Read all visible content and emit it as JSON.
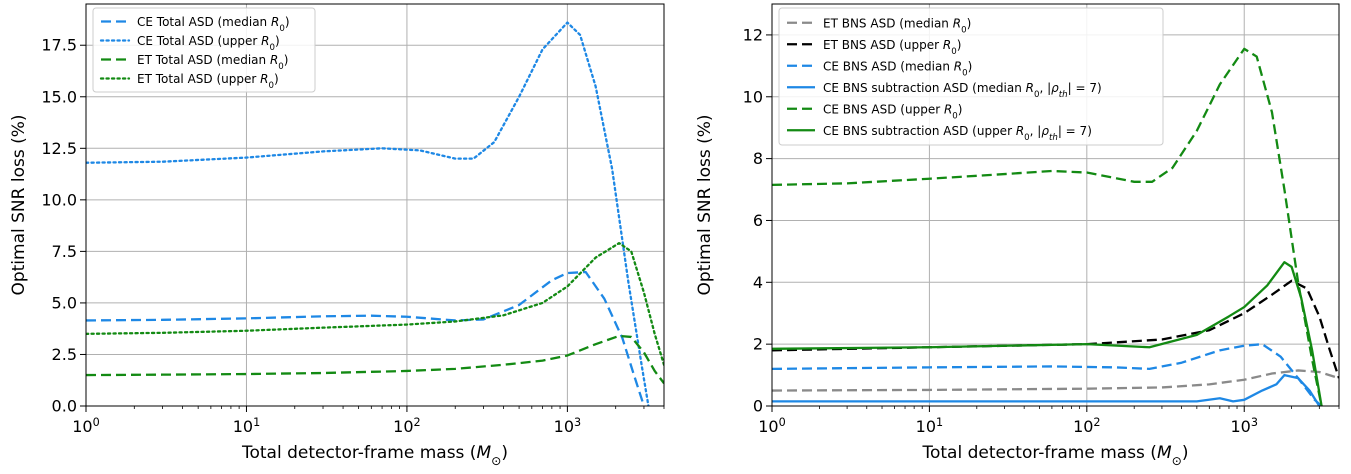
{
  "chart_data": [
    {
      "type": "line",
      "xlabel": "Total detector-frame mass (M⊙)",
      "ylabel": "Optimal SNR loss (%)",
      "xscale": "log",
      "xlim": [
        1,
        4000
      ],
      "ylim": [
        0,
        19.5
      ],
      "yticks": [
        "0.0",
        "2.5",
        "5.0",
        "7.5",
        "10.0",
        "12.5",
        "15.0",
        "17.5"
      ],
      "xticks": [
        "10^0",
        "10^1",
        "10^2",
        "10^3"
      ],
      "grid": true,
      "legend_position": "top-left",
      "series": [
        {
          "name": "CE Total ASD (median R0)",
          "color": "#1e88e5",
          "dash": "dashed",
          "points": [
            [
              1,
              4.15
            ],
            [
              3,
              4.18
            ],
            [
              10,
              4.25
            ],
            [
              30,
              4.35
            ],
            [
              60,
              4.38
            ],
            [
              100,
              4.33
            ],
            [
              200,
              4.15
            ],
            [
              300,
              4.2
            ],
            [
              500,
              4.9
            ],
            [
              800,
              6.1
            ],
            [
              1000,
              6.45
            ],
            [
              1300,
              6.5
            ],
            [
              1700,
              5.2
            ],
            [
              2200,
              3.3
            ],
            [
              2600,
              1.5
            ],
            [
              3000,
              0.0
            ]
          ]
        },
        {
          "name": "CE Total ASD (upper R0)",
          "color": "#1e88e5",
          "dash": "dotted",
          "points": [
            [
              1,
              11.8
            ],
            [
              3,
              11.85
            ],
            [
              10,
              12.05
            ],
            [
              30,
              12.35
            ],
            [
              70,
              12.5
            ],
            [
              120,
              12.4
            ],
            [
              200,
              12.0
            ],
            [
              260,
              12.0
            ],
            [
              350,
              12.8
            ],
            [
              500,
              15.0
            ],
            [
              700,
              17.3
            ],
            [
              1000,
              18.6
            ],
            [
              1200,
              18.0
            ],
            [
              1500,
              15.5
            ],
            [
              1900,
              11.5
            ],
            [
              2400,
              6.0
            ],
            [
              2900,
              2.0
            ],
            [
              3200,
              0.0
            ]
          ]
        },
        {
          "name": "ET Total ASD (median R0)",
          "color": "#138a13",
          "dash": "dashed",
          "points": [
            [
              1,
              1.5
            ],
            [
              3,
              1.52
            ],
            [
              10,
              1.55
            ],
            [
              30,
              1.6
            ],
            [
              100,
              1.7
            ],
            [
              200,
              1.8
            ],
            [
              400,
              2.0
            ],
            [
              700,
              2.2
            ],
            [
              1000,
              2.45
            ],
            [
              1500,
              3.0
            ],
            [
              2100,
              3.4
            ],
            [
              2500,
              3.35
            ],
            [
              3000,
              2.6
            ],
            [
              3500,
              1.7
            ],
            [
              4000,
              1.1
            ]
          ]
        },
        {
          "name": "ET Total ASD (upper R0)",
          "color": "#138a13",
          "dash": "dotted",
          "points": [
            [
              1,
              3.5
            ],
            [
              3,
              3.55
            ],
            [
              10,
              3.65
            ],
            [
              30,
              3.8
            ],
            [
              100,
              3.95
            ],
            [
              200,
              4.1
            ],
            [
              400,
              4.4
            ],
            [
              700,
              5.0
            ],
            [
              1000,
              5.8
            ],
            [
              1500,
              7.2
            ],
            [
              2100,
              7.9
            ],
            [
              2500,
              7.5
            ],
            [
              3000,
              5.5
            ],
            [
              3500,
              3.5
            ],
            [
              4000,
              2.0
            ]
          ]
        }
      ]
    },
    {
      "type": "line",
      "xlabel": "Total detector-frame mass (M⊙)",
      "ylabel": "Optimal SNR loss (%)",
      "xscale": "log",
      "xlim": [
        1,
        4000
      ],
      "ylim": [
        0,
        13
      ],
      "yticks": [
        "0",
        "2",
        "4",
        "6",
        "8",
        "10",
        "12"
      ],
      "xticks": [
        "10^0",
        "10^1",
        "10^2",
        "10^3"
      ],
      "grid": true,
      "legend_position": "top-left",
      "series": [
        {
          "name": "ET BNS ASD (median R0)",
          "color": "#8a8a8a",
          "dash": "dashed",
          "points": [
            [
              1,
              0.5
            ],
            [
              10,
              0.52
            ],
            [
              100,
              0.56
            ],
            [
              300,
              0.6
            ],
            [
              600,
              0.7
            ],
            [
              1000,
              0.85
            ],
            [
              1500,
              1.05
            ],
            [
              2200,
              1.15
            ],
            [
              3000,
              1.1
            ],
            [
              4000,
              0.9
            ]
          ]
        },
        {
          "name": "ET BNS ASD (upper R0)",
          "color": "#000000",
          "dash": "dashed",
          "points": [
            [
              1,
              1.8
            ],
            [
              10,
              1.9
            ],
            [
              100,
              2.0
            ],
            [
              300,
              2.15
            ],
            [
              600,
              2.45
            ],
            [
              1000,
              3.0
            ],
            [
              1500,
              3.6
            ],
            [
              2000,
              4.05
            ],
            [
              2500,
              3.8
            ],
            [
              3000,
              2.9
            ],
            [
              3500,
              1.8
            ],
            [
              4000,
              0.9
            ]
          ]
        },
        {
          "name": "CE BNS ASD (median R0)",
          "color": "#1e88e5",
          "dash": "dashed",
          "points": [
            [
              1,
              1.2
            ],
            [
              10,
              1.25
            ],
            [
              60,
              1.28
            ],
            [
              150,
              1.25
            ],
            [
              250,
              1.2
            ],
            [
              400,
              1.4
            ],
            [
              700,
              1.8
            ],
            [
              1000,
              1.95
            ],
            [
              1300,
              2.0
            ],
            [
              1700,
              1.6
            ],
            [
              2200,
              0.9
            ],
            [
              2800,
              0.2
            ],
            [
              3100,
              0.0
            ]
          ]
        },
        {
          "name": "CE BNS subtraction ASD (median R0, |ρth| = 7)",
          "color": "#1e88e5",
          "dash": "solid",
          "points": [
            [
              1,
              0.15
            ],
            [
              10,
              0.15
            ],
            [
              100,
              0.15
            ],
            [
              500,
              0.15
            ],
            [
              700,
              0.25
            ],
            [
              850,
              0.15
            ],
            [
              1000,
              0.2
            ],
            [
              1300,
              0.5
            ],
            [
              1600,
              0.7
            ],
            [
              1800,
              1.0
            ],
            [
              2200,
              0.9
            ],
            [
              2600,
              0.5
            ],
            [
              3000,
              0.0
            ]
          ]
        },
        {
          "name": "CE BNS ASD (upper R0)",
          "color": "#138a13",
          "dash": "dashed",
          "points": [
            [
              1,
              7.15
            ],
            [
              3,
              7.2
            ],
            [
              10,
              7.35
            ],
            [
              30,
              7.5
            ],
            [
              60,
              7.6
            ],
            [
              100,
              7.55
            ],
            [
              200,
              7.25
            ],
            [
              260,
              7.25
            ],
            [
              350,
              7.7
            ],
            [
              500,
              8.9
            ],
            [
              700,
              10.4
            ],
            [
              1000,
              11.55
            ],
            [
              1200,
              11.3
            ],
            [
              1500,
              9.5
            ],
            [
              1800,
              7.0
            ],
            [
              2200,
              4.0
            ],
            [
              2700,
              1.5
            ],
            [
              3100,
              0.0
            ]
          ]
        },
        {
          "name": "CE BNS subtraction ASD (upper R0, |ρth| = 7)",
          "color": "#138a13",
          "dash": "solid",
          "points": [
            [
              1,
              1.85
            ],
            [
              10,
              1.9
            ],
            [
              100,
              2.0
            ],
            [
              250,
              1.9
            ],
            [
              500,
              2.3
            ],
            [
              800,
              2.9
            ],
            [
              1000,
              3.2
            ],
            [
              1400,
              3.9
            ],
            [
              1800,
              4.65
            ],
            [
              2000,
              4.5
            ],
            [
              2300,
              3.5
            ],
            [
              2700,
              1.8
            ],
            [
              3100,
              0.0
            ]
          ]
        }
      ]
    }
  ]
}
